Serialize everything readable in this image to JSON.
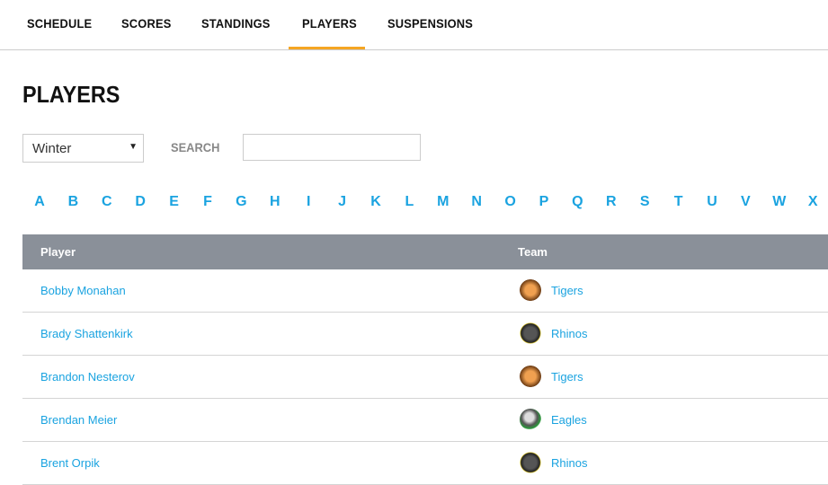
{
  "nav": {
    "items": [
      "SCHEDULE",
      "SCORES",
      "STANDINGS",
      "PLAYERS",
      "SUSPENSIONS"
    ],
    "active": "PLAYERS",
    "accent": "#f5a623"
  },
  "page_title": "PLAYERS",
  "filters": {
    "season": "Winter",
    "search_label": "SEARCH",
    "search_value": ""
  },
  "letters": [
    "A",
    "B",
    "C",
    "D",
    "E",
    "F",
    "G",
    "H",
    "I",
    "J",
    "K",
    "L",
    "M",
    "N",
    "O",
    "P",
    "Q",
    "R",
    "S",
    "T",
    "U",
    "V",
    "W",
    "X"
  ],
  "table": {
    "headers": [
      "Player",
      "Team"
    ],
    "rows": [
      {
        "player": "Bobby Monahan",
        "team": "Tigers",
        "logo": "tiger-logo-icon"
      },
      {
        "player": "Brady Shattenkirk",
        "team": "Rhinos",
        "logo": "rhino-logo-icon"
      },
      {
        "player": "Brandon Nesterov",
        "team": "Tigers",
        "logo": "tiger-logo-icon"
      },
      {
        "player": "Brendan Meier",
        "team": "Eagles",
        "logo": "eagle-logo-icon"
      },
      {
        "player": "Brent Orpik",
        "team": "Rhinos",
        "logo": "rhino-logo-icon"
      }
    ]
  },
  "colors": {
    "link": "#1aa3e0",
    "header_bg": "#8a9099"
  }
}
